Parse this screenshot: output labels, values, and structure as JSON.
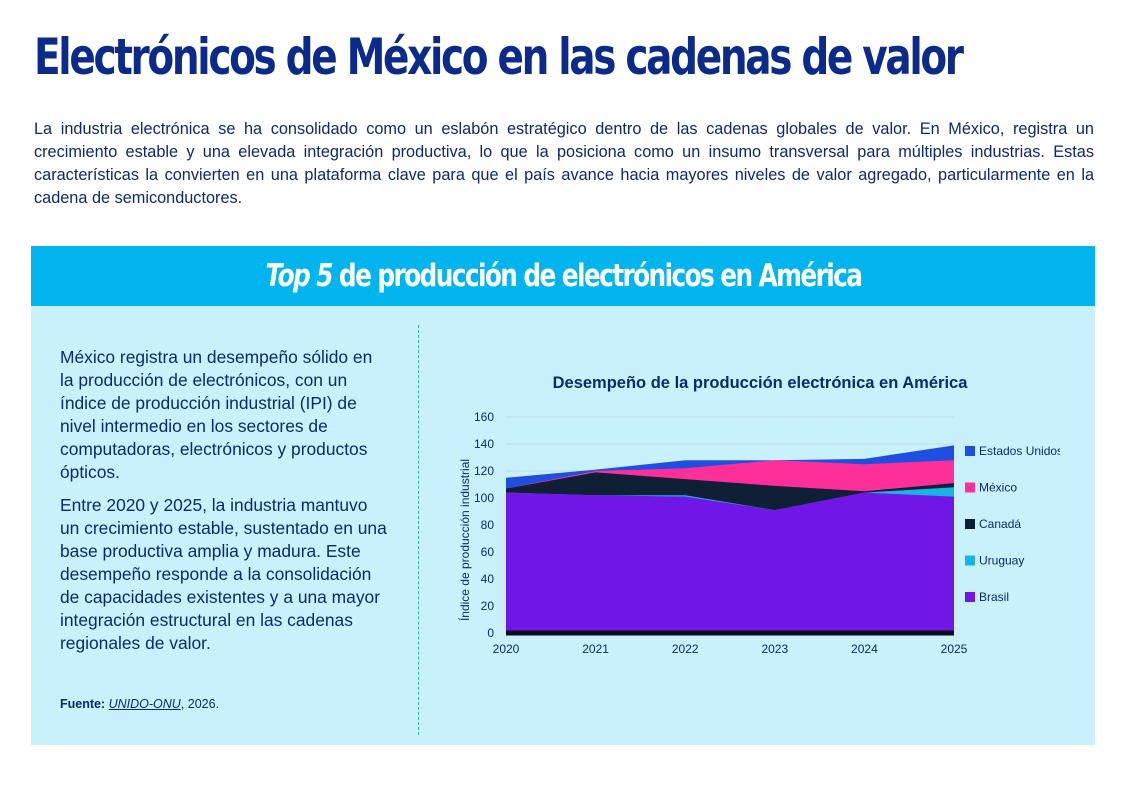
{
  "header": {
    "title": "Electrónicos de México en las cadenas de valor",
    "intro": "La industria electrónica se ha consolidado como un eslabón estratégico dentro de las cadenas globales de valor. En México, registra un crecimiento estable y una elevada integración productiva, lo que la posiciona como un insumo transversal para múltiples industrias. Estas características la convierten en una plataforma clave para que el país avance hacia mayores niveles de valor agregado, particularmente en la cadena de semiconductores."
  },
  "banner": {
    "title_italic": "Top 5",
    "title_rest": " de producción de electrónicos en América"
  },
  "left": {
    "paragraph1": "México registra un desempeño sólido en la producción de electrónicos, con un índice de producción industrial (IPI) de nivel intermedio en los sectores de computadoras, electrónicos y productos ópticos.",
    "paragraph2": "Entre 2020 y 2025, la industria mantuvo un crecimiento estable, sustentado en una base productiva amplia y madura. Este desempeño responde a la consolidación de capacidades existentes y a una mayor integración estructural en las cadenas regionales de valor.",
    "source_label": "Fuente: ",
    "source_link": "UNIDO-ONU",
    "source_year": ", 2026."
  },
  "chart_data": {
    "type": "area",
    "title": "Desempeño de la producción electrónica en América",
    "ylabel": "Índice de producción industrial",
    "xlabel": "",
    "x": [
      "2020",
      "2021",
      "2022",
      "2023",
      "2024",
      "2025"
    ],
    "ylim": [
      0,
      160
    ],
    "yticks": [
      0,
      20,
      40,
      60,
      80,
      100,
      120,
      140,
      160
    ],
    "grid": true,
    "legend_position": "right",
    "series": [
      {
        "name": "Estados Unidos",
        "color": "#1f4ee0",
        "values": [
          115,
          121,
          128,
          128,
          129,
          139
        ]
      },
      {
        "name": "México",
        "color": "#ff2f9a",
        "values": [
          107,
          120,
          122,
          128,
          125,
          128
        ]
      },
      {
        "name": "Canadá",
        "color": "#0e1f36",
        "values": [
          107,
          119,
          114,
          109,
          105,
          111
        ]
      },
      {
        "name": "Uruguay",
        "color": "#19b3e6",
        "values": [
          104,
          102,
          102,
          91,
          104,
          108
        ]
      },
      {
        "name": "Brasil",
        "color": "#7017e8",
        "values": [
          104,
          102,
          101,
          91,
          104,
          101
        ]
      }
    ]
  }
}
